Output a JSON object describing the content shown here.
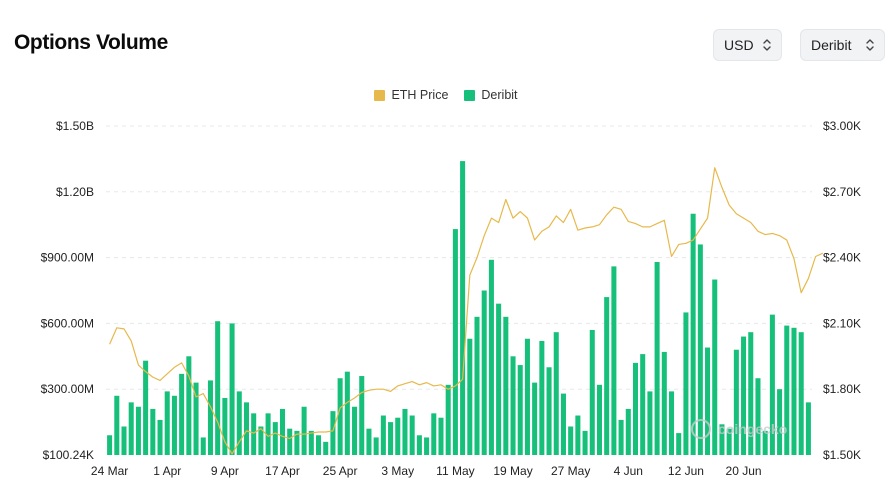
{
  "header": {
    "title": "Options Volume",
    "currency": "USD",
    "exchange": "Deribit"
  },
  "colors": {
    "price_line": "#e7b94c",
    "volume_bars": "#17c07a",
    "grid": "#e6e8eb"
  },
  "icons": {
    "select_chevron": "chevron-up-down-icon"
  },
  "chart_data": {
    "type": "bar",
    "legend": [
      "ETH Price",
      "Deribit"
    ],
    "legend_position": "top-center",
    "grid": true,
    "y_left": {
      "ticks": [
        "$1.50B",
        "$1.20B",
        "$900.00M",
        "$600.00M",
        "$300.00M",
        "$100.24K"
      ],
      "range": [
        0,
        1500000000
      ]
    },
    "y_right": {
      "ticks": [
        "$3.00K",
        "$2.70K",
        "$2.40K",
        "$2.10K",
        "$1.80K",
        "$1.50K"
      ],
      "range": [
        1500,
        3000
      ]
    },
    "x_ticks": [
      "24 Mar",
      "1 Apr",
      "9 Apr",
      "17 Apr",
      "25 Apr",
      "3 May",
      "11 May",
      "19 May",
      "27 May",
      "4 Jun",
      "12 Jun",
      "20 Jun"
    ],
    "x_start": "24 Mar",
    "series": [
      {
        "name": "Deribit",
        "kind": "bar",
        "axis": "left",
        "values": [
          90000000,
          270000000,
          130000000,
          240000000,
          220000000,
          430000000,
          210000000,
          160000000,
          290000000,
          270000000,
          370000000,
          450000000,
          330000000,
          80000000,
          340000000,
          610000000,
          260000000,
          600000000,
          290000000,
          240000000,
          190000000,
          130000000,
          190000000,
          150000000,
          210000000,
          120000000,
          110000000,
          220000000,
          110000000,
          90000000,
          60000000,
          200000000,
          350000000,
          380000000,
          220000000,
          360000000,
          120000000,
          80000000,
          180000000,
          150000000,
          170000000,
          210000000,
          180000000,
          90000000,
          80000000,
          190000000,
          170000000,
          320000000,
          1030000000,
          1340000000,
          530000000,
          630000000,
          750000000,
          890000000,
          690000000,
          630000000,
          450000000,
          410000000,
          530000000,
          330000000,
          520000000,
          400000000,
          560000000,
          280000000,
          130000000,
          180000000,
          110000000,
          570000000,
          320000000,
          720000000,
          860000000,
          160000000,
          210000000,
          420000000,
          460000000,
          290000000,
          880000000,
          470000000,
          290000000,
          100000000,
          650000000,
          1100000000,
          960000000,
          490000000,
          800000000,
          140000000,
          120000000,
          480000000,
          540000000,
          560000000,
          350000000,
          110000000,
          640000000,
          300000000,
          590000000,
          580000000,
          560000000,
          240000000
        ]
      },
      {
        "name": "ETH Price",
        "kind": "line",
        "axis": "right",
        "values": [
          2005,
          2080,
          2075,
          2020,
          1910,
          1880,
          1855,
          1840,
          1870,
          1900,
          1920,
          1860,
          1765,
          1780,
          1720,
          1650,
          1560,
          1505,
          1560,
          1610,
          1600,
          1620,
          1585,
          1600,
          1585,
          1575,
          1595,
          1595,
          1600,
          1605,
          1605,
          1610,
          1715,
          1740,
          1760,
          1785,
          1795,
          1800,
          1800,
          1790,
          1815,
          1825,
          1835,
          1820,
          1830,
          1815,
          1820,
          1800,
          1815,
          1845,
          2320,
          2400,
          2500,
          2580,
          2560,
          2665,
          2580,
          2610,
          2580,
          2480,
          2520,
          2540,
          2590,
          2560,
          2620,
          2525,
          2535,
          2540,
          2550,
          2595,
          2630,
          2620,
          2565,
          2555,
          2540,
          2540,
          2555,
          2570,
          2405,
          2460,
          2465,
          2480,
          2530,
          2580,
          2810,
          2720,
          2640,
          2600,
          2580,
          2560,
          2520,
          2505,
          2510,
          2500,
          2480,
          2395,
          2240,
          2305,
          2405,
          2420
        ]
      }
    ],
    "watermark": "coingecko"
  }
}
